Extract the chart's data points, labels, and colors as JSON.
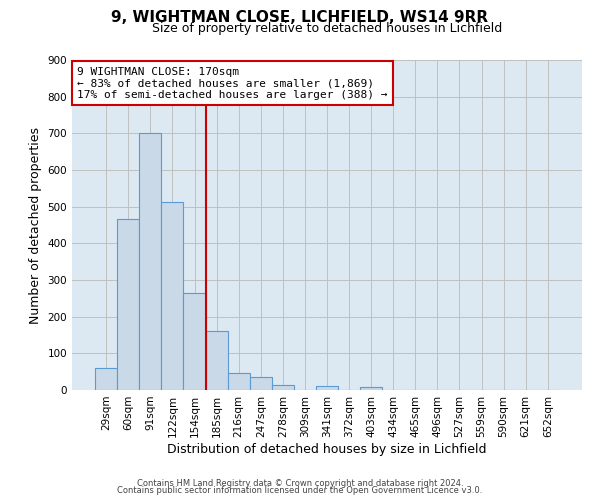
{
  "title_line1": "9, WIGHTMAN CLOSE, LICHFIELD, WS14 9RR",
  "title_line2": "Size of property relative to detached houses in Lichfield",
  "xlabel": "Distribution of detached houses by size in Lichfield",
  "ylabel": "Number of detached properties",
  "bar_labels": [
    "29sqm",
    "60sqm",
    "91sqm",
    "122sqm",
    "154sqm",
    "185sqm",
    "216sqm",
    "247sqm",
    "278sqm",
    "309sqm",
    "341sqm",
    "372sqm",
    "403sqm",
    "434sqm",
    "465sqm",
    "496sqm",
    "527sqm",
    "559sqm",
    "590sqm",
    "621sqm",
    "652sqm"
  ],
  "bar_heights": [
    60,
    467,
    700,
    514,
    265,
    160,
    47,
    35,
    14,
    0,
    10,
    0,
    8,
    0,
    0,
    0,
    0,
    0,
    0,
    0,
    0
  ],
  "bar_color": "#c9d9e8",
  "bar_edge_color": "#5b9bd5",
  "vline_x_index": 5,
  "vline_color": "#cc0000",
  "annotation_line1": "9 WIGHTMAN CLOSE: 170sqm",
  "annotation_line2": "← 83% of detached houses are smaller (1,869)",
  "annotation_line3": "17% of semi-detached houses are larger (388) →",
  "annotation_box_color": "#ffffff",
  "annotation_box_edge_color": "#cc0000",
  "ylim": [
    0,
    900
  ],
  "yticks": [
    0,
    100,
    200,
    300,
    400,
    500,
    600,
    700,
    800,
    900
  ],
  "grid_color": "#c0c0c0",
  "bg_color": "#dce8f2",
  "fig_bg_color": "#ffffff",
  "footer_line1": "Contains HM Land Registry data © Crown copyright and database right 2024.",
  "footer_line2": "Contains public sector information licensed under the Open Government Licence v3.0.",
  "title_fontsize": 11,
  "subtitle_fontsize": 9,
  "ylabel_fontsize": 9,
  "xlabel_fontsize": 9,
  "tick_fontsize": 7.5,
  "footer_fontsize": 6,
  "annot_fontsize": 8
}
